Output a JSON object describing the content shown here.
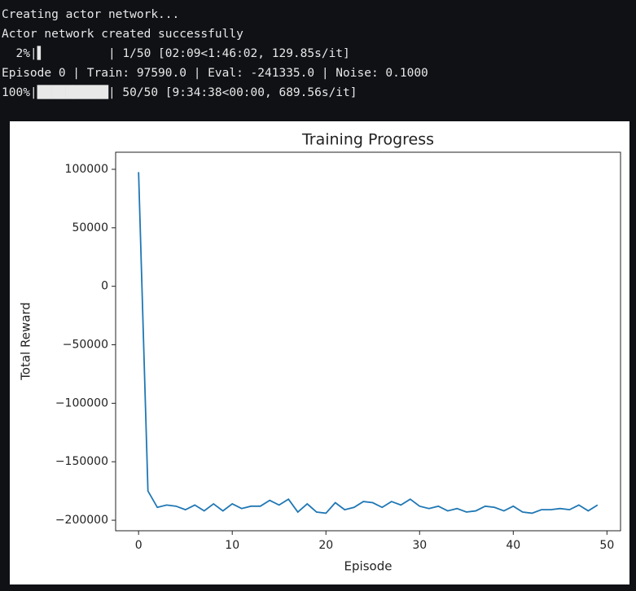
{
  "console": {
    "lines": [
      "Creating actor network...",
      "Actor network created successfully",
      "  2%|▌         | 1/50 [02:09<1:46:02, 129.85s/it]",
      "Episode 0 | Train: 97590.0 | Eval: -241335.0 | Noise: 0.1000",
      "100%|██████████| 50/50 [9:34:38<00:00, 689.56s/it]"
    ]
  },
  "chart_data": {
    "type": "line",
    "title": "Training Progress",
    "x_label": "Episode",
    "y_label": "Total Reward",
    "x": [
      0,
      1,
      2,
      3,
      4,
      5,
      6,
      7,
      8,
      9,
      10,
      11,
      12,
      13,
      14,
      15,
      16,
      17,
      18,
      19,
      20,
      21,
      22,
      23,
      24,
      25,
      26,
      27,
      28,
      29,
      30,
      31,
      32,
      33,
      34,
      35,
      36,
      37,
      38,
      39,
      40,
      41,
      42,
      43,
      44,
      45,
      46,
      47,
      48,
      49
    ],
    "values": [
      97590,
      -175000,
      -189000,
      -187000,
      -188000,
      -191000,
      -187000,
      -192000,
      -186000,
      -192000,
      -186000,
      -190000,
      -188000,
      -188000,
      -183000,
      -187000,
      -182000,
      -193000,
      -186000,
      -193000,
      -194000,
      -185000,
      -191000,
      -189000,
      -184000,
      -185000,
      -189000,
      -184000,
      -187000,
      -182000,
      -188000,
      -190000,
      -188000,
      -192000,
      -190000,
      -193000,
      -192000,
      -188000,
      -189000,
      -192000,
      -188000,
      -193000,
      -194000,
      -191000,
      -191000,
      -190000,
      -191000,
      -187000,
      -192000,
      -187000
    ],
    "color": "#1f77b4",
    "xlim": [
      -2.45,
      51.45
    ],
    "xticks": [
      0,
      10,
      20,
      30,
      40,
      50
    ],
    "ylim": [
      -209000,
      114600
    ],
    "yticks": [
      {
        "value": -200000,
        "label": "−200000"
      },
      {
        "value": -150000,
        "label": "−150000"
      },
      {
        "value": -100000,
        "label": "−100000"
      },
      {
        "value": -50000,
        "label": "−50000"
      },
      0,
      50000,
      100000
    ]
  }
}
